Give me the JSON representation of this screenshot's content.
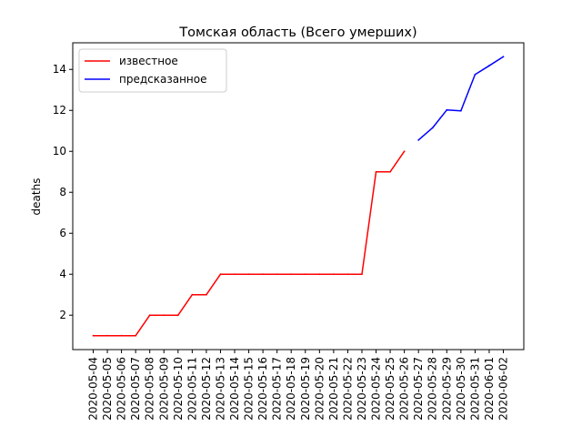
{
  "chart_data": {
    "type": "line",
    "title": "Томская область (Всего умерших)",
    "xlabel": "",
    "ylabel": "deaths",
    "x": [
      "2020-05-04",
      "2020-05-05",
      "2020-05-06",
      "2020-05-07",
      "2020-05-08",
      "2020-05-09",
      "2020-05-10",
      "2020-05-11",
      "2020-05-12",
      "2020-05-13",
      "2020-05-14",
      "2020-05-15",
      "2020-05-16",
      "2020-05-17",
      "2020-05-18",
      "2020-05-19",
      "2020-05-20",
      "2020-05-21",
      "2020-05-22",
      "2020-05-23",
      "2020-05-24",
      "2020-05-25",
      "2020-05-26",
      "2020-05-27",
      "2020-05-28",
      "2020-05-29",
      "2020-05-30",
      "2020-05-31",
      "2020-06-01",
      "2020-06-02"
    ],
    "y_ticks": [
      2,
      4,
      6,
      8,
      10,
      12,
      14
    ],
    "ylim": [
      0.32,
      15.3
    ],
    "legend_position": "upper-left",
    "grid": false,
    "series": [
      {
        "name": "известное",
        "color": "#ff0000",
        "x": [
          "2020-05-04",
          "2020-05-05",
          "2020-05-06",
          "2020-05-07",
          "2020-05-08",
          "2020-05-09",
          "2020-05-10",
          "2020-05-11",
          "2020-05-12",
          "2020-05-13",
          "2020-05-14",
          "2020-05-15",
          "2020-05-16",
          "2020-05-17",
          "2020-05-18",
          "2020-05-19",
          "2020-05-20",
          "2020-05-21",
          "2020-05-22",
          "2020-05-23",
          "2020-05-24",
          "2020-05-25",
          "2020-05-26"
        ],
        "values": [
          1,
          1,
          1,
          1,
          2,
          2,
          2,
          3,
          3,
          4,
          4,
          4,
          4,
          4,
          4,
          4,
          4,
          4,
          4,
          4,
          9,
          9,
          10
        ]
      },
      {
        "name": "предсказанное",
        "color": "#0000ff",
        "x": [
          "2020-05-27",
          "2020-05-28",
          "2020-05-29",
          "2020-05-30",
          "2020-05-31",
          "2020-06-01",
          "2020-06-02"
        ],
        "values": [
          10.55,
          11.15,
          12.02,
          11.98,
          13.75,
          14.18,
          14.62
        ]
      }
    ]
  }
}
